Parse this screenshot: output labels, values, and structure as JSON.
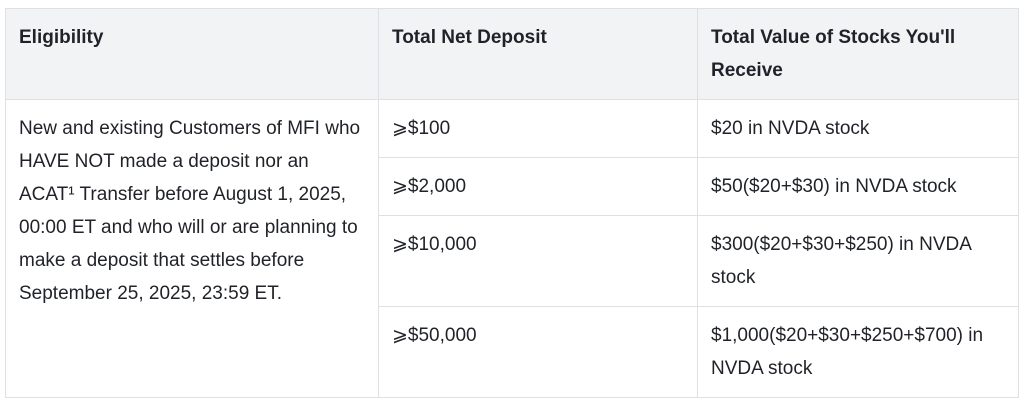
{
  "table": {
    "header": [
      "Eligibility",
      "Total Net Deposit",
      "Total Value of Stocks You'll Receive"
    ],
    "eligibility": "New and existing Customers of MFI who HAVE NOT made a deposit nor an ACAT¹ Transfer before August 1, 2025, 00:00 ET and who will or are planning to make a deposit that settles before September 25, 2025, 23:59 ET.",
    "rows": [
      [
        "⩾$100",
        "$20 in NVDA stock"
      ],
      [
        "⩾$2,000",
        "$50($20+$30) in NVDA stock"
      ],
      [
        "⩾$10,000",
        "$300($20+$30+$250) in NVDA stock"
      ],
      [
        "⩾$50,000",
        "$1,000($20+$30+$250+$700) in NVDA stock"
      ]
    ]
  }
}
